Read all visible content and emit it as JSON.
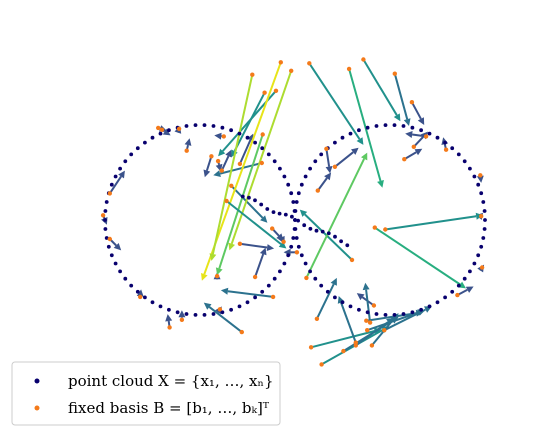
{
  "chart_data": {
    "type": "scatter",
    "title": "",
    "xlabel": "",
    "ylabel": "",
    "axes_visible": false,
    "grid": false,
    "legend_placement": "bottom-left",
    "colors": {
      "point_cloud": "#08006e",
      "fixed_basis": "#f47a1a",
      "arrow_colormap": [
        "#3b528b",
        "#2c728e",
        "#21918c",
        "#28ae80",
        "#5ec962",
        "#addc30",
        "#e7e419"
      ]
    },
    "series": [
      {
        "name": "point cloud",
        "legend_label": "point cloud X = {x₁, …, xₙ}",
        "marker": "dot",
        "shape": "two circles of radius 1 centred at x = -1 and x = +1, joined by a crossing segment",
        "count": 150
      },
      {
        "name": "fixed basis",
        "legend_label": "fixed basis B = [b₁, …, bₖ]ᵀ",
        "marker": "dot",
        "x": [
          -1.22,
          -1.44,
          -0.75,
          -0.79,
          -1.19,
          -1.63,
          -1.95,
          -2.02,
          -1.95,
          -1.4,
          -1.14,
          -0.88,
          -0.81,
          -0.32,
          -0.2,
          -0.58,
          -0.77,
          -0.67,
          0.02,
          -0.35,
          -0.82,
          -0.34,
          -1.32,
          -0.15,
          -0.45,
          -0.04,
          -0.72,
          -0.24,
          -0.12,
          -0.58,
          -0.42,
          -0.23,
          -0.56,
          0.17,
          0.28,
          0.51,
          0.64,
          0.81,
          0.75,
          0.76,
          0.94,
          1.71,
          1.97,
          1.95,
          1.96,
          1.59,
          1.38,
          1.23,
          1.05,
          0.83,
          0.79,
          0.6,
          0.12,
          0.24,
          0.42,
          0.33,
          1.15,
          1.25,
          0.95,
          0.84,
          0.57,
          0.72,
          0.15,
          0.23,
          0.64
        ],
        "y": [
          0.96,
          0.97,
          0.88,
          -0.94,
          -1.05,
          -0.81,
          -0.2,
          0.05,
          0.28,
          0.95,
          0.73,
          0.67,
          0.62,
          1.34,
          1.36,
          0.59,
          0.52,
          0.36,
          -0.34,
          0.6,
          -0.59,
          0.9,
          -1.13,
          1.66,
          1.53,
          1.57,
          0.2,
          -0.09,
          -0.23,
          -0.25,
          -0.6,
          -0.81,
          -1.18,
          -1.34,
          -1.52,
          -1.38,
          -1.32,
          -1.32,
          -1.06,
          -1.16,
          -1.16,
          -0.79,
          -0.5,
          0.47,
          0.04,
          0.74,
          0.88,
          1.24,
          1.54,
          -0.9,
          -1.08,
          -0.42,
          -0.61,
          0.31,
          0.56,
          0.75,
          0.64,
          0.77,
          -0.1,
          -0.08,
          1.59,
          1.69,
          1.65,
          -1.04,
          -1.29
        ]
      }
    ],
    "arrows": {
      "from_series": "fixed basis",
      "to_series": "point cloud",
      "color_scale_by": "length",
      "count": 65,
      "targets": {
        "x": [
          -1.21,
          -1.35,
          -0.85,
          -0.77,
          -1.19,
          -1.62,
          -1.83,
          -1.98,
          -1.79,
          -1.31,
          -1.11,
          -0.95,
          -0.78,
          -0.67,
          -0.81,
          -0.44,
          -0.67,
          -0.29,
          -0.12,
          -0.86,
          -0.82,
          -0.82,
          -1.34,
          -0.98,
          -0.88,
          -0.69,
          -0.09,
          -0.12,
          -0.11,
          -0.22,
          -0.31,
          -0.78,
          -0.96,
          0.91,
          0.99,
          1.09,
          1.04,
          1.09,
          1.35,
          1.37,
          1.44,
          1.88,
          1.99,
          1.96,
          1.9,
          1.56,
          1.16,
          1.36,
          1.2,
          0.65,
          0.74,
          0.05,
          0.76,
          0.38,
          0.67,
          0.37,
          1.34,
          1.4,
          1.98,
          1.8,
          0.92,
          1.11,
          0.72,
          0.44,
          0.46
        ],
        "y": [
          0.99,
          0.94,
          0.89,
          -0.91,
          -0.95,
          -0.73,
          -0.32,
          -0.05,
          0.52,
          0.89,
          0.86,
          0.45,
          0.51,
          0.66,
          0.67,
          0.91,
          0.74,
          -0.03,
          -0.34,
          0.47,
          -0.55,
          -0.58,
          -0.99,
          -0.64,
          -0.43,
          -0.32,
          -0.3,
          -0.22,
          -0.25,
          -0.3,
          -0.29,
          -0.74,
          -0.87,
          -1.15,
          -1.12,
          -1.02,
          -1.03,
          -0.98,
          -0.97,
          -0.95,
          -0.91,
          -0.7,
          -0.47,
          0.39,
          0.05,
          0.87,
          0.91,
          1.0,
          0.99,
          -0.77,
          -0.66,
          0.11,
          0.71,
          0.5,
          0.76,
          0.49,
          0.75,
          0.93,
          0.05,
          -0.72,
          0.34,
          1.04,
          0.79,
          -0.61,
          -0.8
        ]
      }
    }
  }
}
